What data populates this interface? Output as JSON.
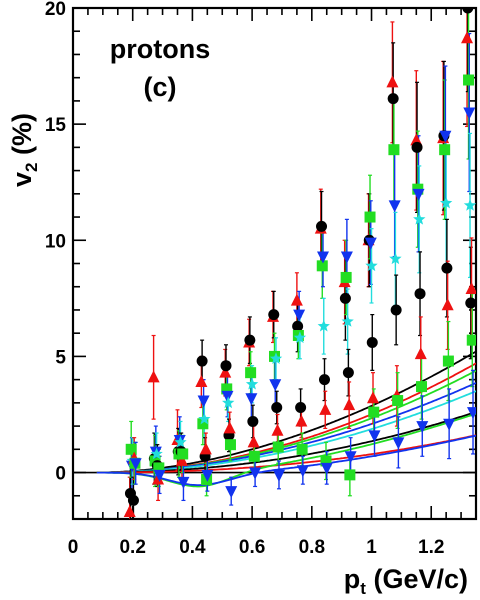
{
  "chart_data": {
    "type": "scatter",
    "title": "",
    "annotation": [
      "protons",
      "(c)"
    ],
    "xlabel": "p",
    "xlabel_sub": "t",
    "xlabel_unit": " (GeV/c)",
    "ylabel": "v",
    "ylabel_sub": "2",
    "ylabel_unit": " (%)",
    "xlim": [
      0,
      1.35
    ],
    "ylim": [
      -2,
      20
    ],
    "x_ticks": [
      0,
      0.2,
      0.4,
      0.6,
      0.8,
      1,
      1.2
    ],
    "x_tick_labels": [
      "0",
      "0.2",
      "0.4",
      "0.6",
      "0.8",
      "1",
      "1.2"
    ],
    "y_ticks": [
      0,
      5,
      10,
      15,
      20
    ],
    "y_tick_labels": [
      "0",
      "5",
      "10",
      "15",
      "20"
    ],
    "grid": false,
    "reference_line_y": 0,
    "series": [
      {
        "marker": "triangle-up",
        "color": "#ee1111",
        "points": [
          [
            0.2,
            -1.7,
            1.5
          ],
          [
            0.28,
            4.1,
            1.8
          ],
          [
            0.36,
            1.4,
            1.3
          ],
          [
            0.44,
            3.9,
            1.1
          ],
          [
            0.52,
            4.3,
            1.0
          ],
          [
            0.6,
            5.6,
            1.0
          ],
          [
            0.68,
            6.7,
            1.1
          ],
          [
            0.76,
            7.4,
            1.2
          ],
          [
            0.84,
            10.5,
            1.7
          ],
          [
            0.92,
            8.2,
            1.8
          ],
          [
            1.0,
            10.0,
            2.0
          ],
          [
            1.08,
            16.8,
            2.6
          ],
          [
            1.16,
            14.3,
            3.0
          ],
          [
            1.25,
            14.4,
            3.3
          ],
          [
            1.33,
            18.7,
            3.8
          ]
        ],
        "curve": [
          2.95,
          1.95,
          0.08
        ]
      },
      {
        "marker": "circle",
        "color": "#000000",
        "points": [
          [
            0.2,
            -0.9,
            1.3
          ],
          [
            0.28,
            0.6,
            1.1
          ],
          [
            0.36,
            0.9,
            1.0
          ],
          [
            0.44,
            4.8,
            0.9
          ],
          [
            0.52,
            4.6,
            0.9
          ],
          [
            0.6,
            5.7,
            1.0
          ],
          [
            0.68,
            6.8,
            1.0
          ],
          [
            0.76,
            6.3,
            1.1
          ],
          [
            0.84,
            10.6,
            1.5
          ],
          [
            0.92,
            7.5,
            1.8
          ],
          [
            1.0,
            10.0,
            2.0
          ],
          [
            1.08,
            16.1,
            2.4
          ],
          [
            1.16,
            14.0,
            2.8
          ],
          [
            1.25,
            14.5,
            3.2
          ],
          [
            1.33,
            20.0,
            3.6
          ]
        ],
        "curve": [
          3.35,
          1.85,
          0.08
        ]
      },
      {
        "marker": "square",
        "color": "#22dd22",
        "points": [
          [
            0.2,
            1.0,
            1.2
          ],
          [
            0.28,
            0.5,
            1.1
          ],
          [
            0.36,
            0.8,
            1.0
          ],
          [
            0.44,
            2.1,
            0.9
          ],
          [
            0.52,
            3.6,
            0.9
          ],
          [
            0.6,
            4.3,
            0.9
          ],
          [
            0.68,
            5.0,
            1.0
          ],
          [
            0.76,
            5.9,
            1.0
          ],
          [
            0.84,
            8.9,
            1.4
          ],
          [
            0.92,
            8.4,
            1.6
          ],
          [
            1.0,
            11.0,
            1.8
          ],
          [
            1.08,
            13.9,
            2.2
          ],
          [
            1.16,
            12.2,
            2.5
          ],
          [
            1.25,
            13.9,
            3.0
          ],
          [
            1.33,
            16.9,
            3.4
          ]
        ],
        "curve": [
          2.75,
          1.95,
          0.08
        ]
      },
      {
        "marker": "triangle-down",
        "color": "#1133ee",
        "points": [
          [
            0.2,
            0.3,
            1.2
          ],
          [
            0.28,
            0.9,
            1.1
          ],
          [
            0.36,
            1.4,
            1.0
          ],
          [
            0.44,
            3.1,
            0.9
          ],
          [
            0.52,
            3.3,
            0.9
          ],
          [
            0.6,
            3.2,
            0.9
          ],
          [
            0.68,
            3.8,
            1.0
          ],
          [
            0.76,
            6.8,
            1.0
          ],
          [
            0.84,
            9.3,
            1.3
          ],
          [
            0.92,
            9.3,
            1.6
          ],
          [
            1.0,
            9.9,
            1.8
          ],
          [
            1.08,
            11.5,
            2.2
          ],
          [
            1.16,
            12.0,
            2.5
          ],
          [
            1.25,
            14.5,
            3.0
          ],
          [
            1.33,
            15.5,
            3.4
          ]
        ],
        "curve": [
          2.45,
          1.9,
          0.08
        ]
      },
      {
        "marker": "star",
        "color": "#22dddd",
        "points": [
          [
            0.2,
            0.5,
            1.0
          ],
          [
            0.28,
            0.8,
            0.9
          ],
          [
            0.36,
            1.3,
            0.9
          ],
          [
            0.44,
            2.3,
            0.8
          ],
          [
            0.52,
            3.0,
            0.8
          ],
          [
            0.6,
            3.8,
            0.8
          ],
          [
            0.68,
            4.9,
            0.9
          ],
          [
            0.76,
            5.8,
            0.9
          ],
          [
            0.84,
            6.3,
            1.2
          ],
          [
            0.92,
            6.5,
            1.4
          ],
          [
            1.0,
            8.9,
            1.6
          ],
          [
            1.08,
            9.2,
            2.0
          ],
          [
            1.16,
            10.9,
            2.3
          ],
          [
            1.25,
            11.6,
            2.7
          ],
          [
            1.33,
            11.5,
            3.1
          ]
        ],
        "curve": [
          2.2,
          1.95,
          0.08
        ]
      },
      {
        "marker": "circle",
        "color": "#000000",
        "points": [
          [
            0.2,
            -1.2,
            1.0
          ],
          [
            0.28,
            0.3,
            0.9
          ],
          [
            0.36,
            0.9,
            0.8
          ],
          [
            0.44,
            0.7,
            0.8
          ],
          [
            0.52,
            1.6,
            0.7
          ],
          [
            0.6,
            2.2,
            0.7
          ],
          [
            0.68,
            2.8,
            0.7
          ],
          [
            0.76,
            2.8,
            0.8
          ],
          [
            0.84,
            4.0,
            0.9
          ],
          [
            0.92,
            4.3,
            1.0
          ],
          [
            1.0,
            5.6,
            1.2
          ],
          [
            1.08,
            7.0,
            1.5
          ],
          [
            1.16,
            7.7,
            1.8
          ],
          [
            1.25,
            8.8,
            2.1
          ],
          [
            1.33,
            7.3,
            2.4
          ]
        ],
        "curve": [
          1.6,
          2.05,
          0.08
        ]
      },
      {
        "marker": "triangle-up",
        "color": "#ee1111",
        "points": [
          [
            0.2,
            0.6,
            0.9
          ],
          [
            0.28,
            -0.3,
            0.9
          ],
          [
            0.36,
            0.5,
            0.8
          ],
          [
            0.44,
            1.0,
            0.7
          ],
          [
            0.52,
            1.9,
            0.7
          ],
          [
            0.6,
            1.3,
            0.7
          ],
          [
            0.68,
            1.8,
            0.7
          ],
          [
            0.76,
            2.2,
            0.7
          ],
          [
            0.84,
            2.7,
            0.8
          ],
          [
            0.92,
            2.9,
            1.0
          ],
          [
            1.0,
            3.2,
            1.1
          ],
          [
            1.08,
            3.3,
            1.3
          ],
          [
            1.16,
            5.1,
            1.6
          ],
          [
            1.25,
            7.2,
            1.9
          ],
          [
            1.33,
            7.9,
            2.2
          ]
        ],
        "curve": [
          0.95,
          2.2,
          0.08
        ]
      },
      {
        "marker": "square",
        "color": "#22dd22",
        "points": [
          [
            0.2,
            0.4,
            0.9
          ],
          [
            0.28,
            0.2,
            0.8
          ],
          [
            0.36,
            0.8,
            0.8
          ],
          [
            0.44,
            -0.3,
            0.7
          ],
          [
            0.52,
            1.2,
            0.7
          ],
          [
            0.6,
            0.7,
            0.6
          ],
          [
            0.68,
            1.1,
            0.7
          ],
          [
            0.76,
            1.0,
            0.7
          ],
          [
            0.84,
            0.5,
            0.8
          ],
          [
            0.92,
            -0.1,
            0.9
          ],
          [
            1.0,
            2.6,
            1.0
          ],
          [
            1.08,
            3.1,
            1.2
          ],
          [
            1.16,
            3.7,
            1.4
          ],
          [
            1.25,
            4.8,
            1.7
          ],
          [
            1.33,
            5.7,
            2.0
          ]
        ],
        "curve": [
          1.35,
          5.4,
          0.4
        ]
      },
      {
        "marker": "triangle-down",
        "color": "#1133ee",
        "points": [
          [
            0.2,
            0.4,
            0.9
          ],
          [
            0.28,
            -0.1,
            0.8
          ],
          [
            0.36,
            -0.4,
            0.8
          ],
          [
            0.44,
            -0.1,
            0.7
          ],
          [
            0.52,
            -0.8,
            0.6
          ],
          [
            0.6,
            0.0,
            0.6
          ],
          [
            0.68,
            -0.1,
            0.6
          ],
          [
            0.76,
            0.1,
            0.6
          ],
          [
            0.84,
            0.2,
            0.7
          ],
          [
            0.92,
            0.7,
            0.8
          ],
          [
            1.0,
            1.6,
            0.9
          ],
          [
            1.08,
            1.3,
            1.1
          ],
          [
            1.16,
            2.0,
            1.3
          ],
          [
            1.25,
            2.1,
            1.5
          ],
          [
            1.33,
            2.6,
            1.8
          ]
        ],
        "curve": [
          1.2,
          6.4,
          0.44
        ]
      }
    ]
  }
}
